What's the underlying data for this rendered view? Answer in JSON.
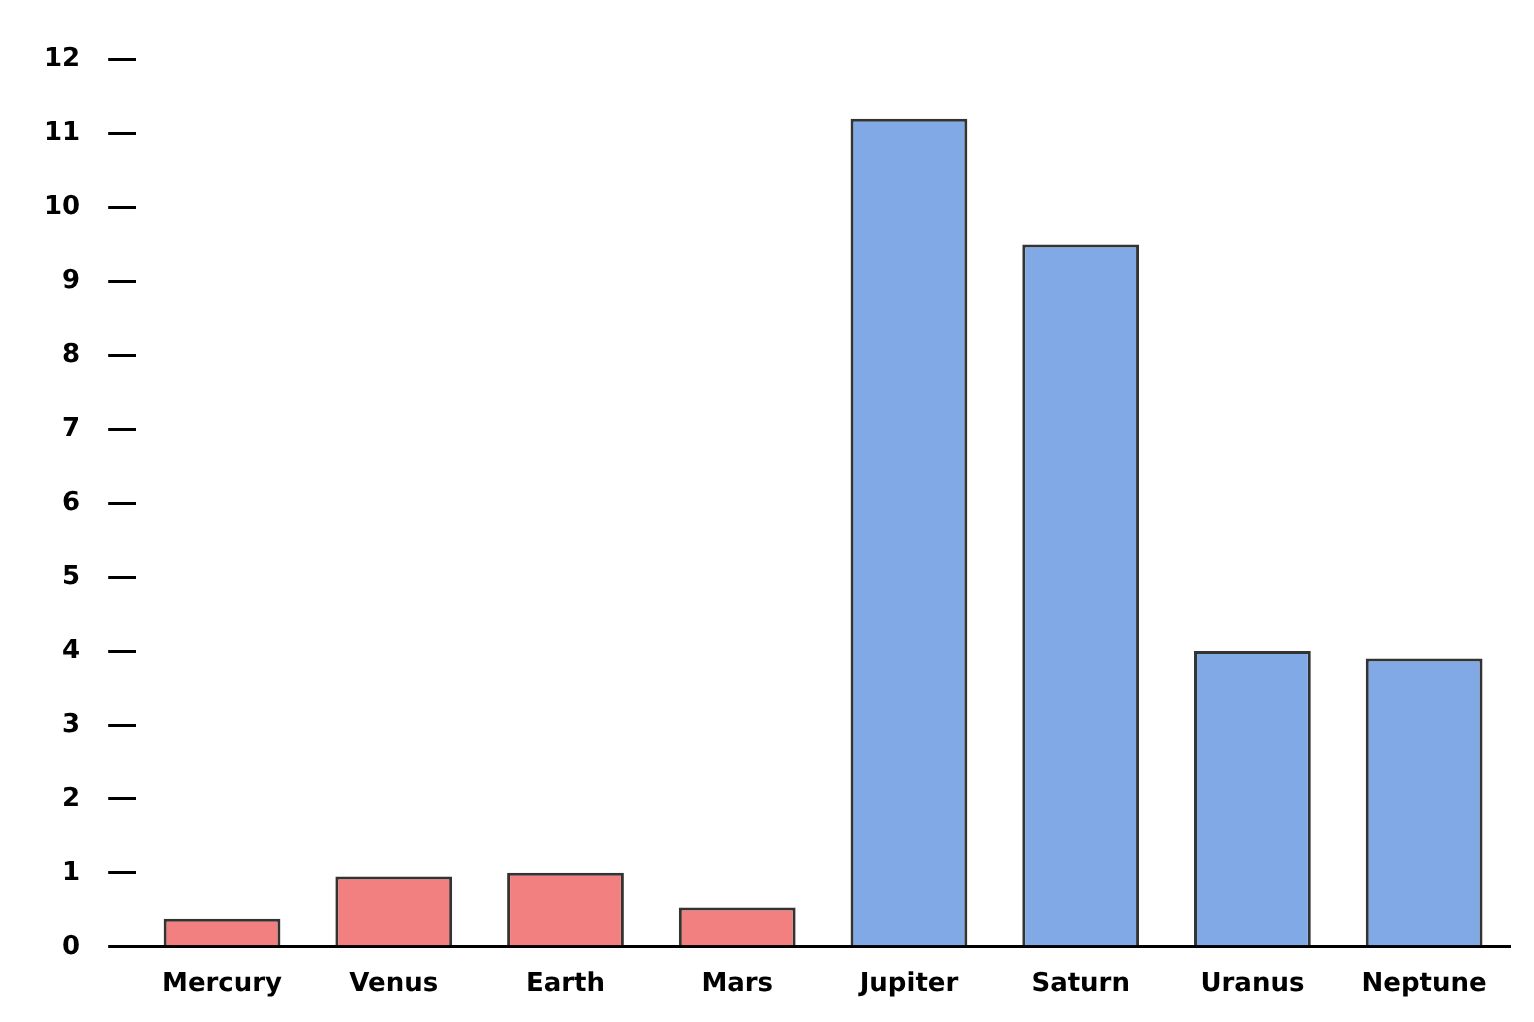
{
  "chart_data": {
    "type": "bar",
    "categories": [
      "Mercury",
      "Venus",
      "Earth",
      "Mars",
      "Jupiter",
      "Saturn",
      "Uranus",
      "Neptune"
    ],
    "values": [
      0.38,
      0.95,
      1.0,
      0.53,
      11.2,
      9.5,
      4.0,
      3.9
    ],
    "colors": [
      "#f28080",
      "#f28080",
      "#f28080",
      "#f28080",
      "#80a9e6",
      "#80a9e6",
      "#80a9e6",
      "#80a9e6"
    ],
    "ylim": [
      0,
      12
    ],
    "yticks": [
      0,
      1,
      2,
      3,
      4,
      5,
      6,
      7,
      8,
      9,
      10,
      11,
      12
    ]
  }
}
